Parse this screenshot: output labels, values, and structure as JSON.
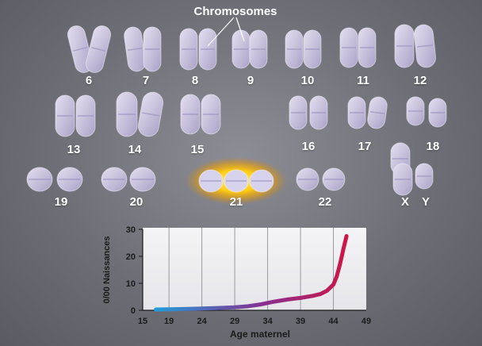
{
  "diagram": {
    "title": "Chromosomes",
    "chromosomes": [
      {
        "label": "6"
      },
      {
        "label": "7"
      },
      {
        "label": "8"
      },
      {
        "label": "9"
      },
      {
        "label": "10"
      },
      {
        "label": "11"
      },
      {
        "label": "12"
      },
      {
        "label": "13"
      },
      {
        "label": "14"
      },
      {
        "label": "15"
      },
      {
        "label": "16"
      },
      {
        "label": "17"
      },
      {
        "label": "18"
      },
      {
        "label": "19"
      },
      {
        "label": "20"
      },
      {
        "label": "21"
      },
      {
        "label": "22"
      },
      {
        "label": "X"
      },
      {
        "label": "Y"
      }
    ],
    "highlighted": "21",
    "colors": {
      "chromosome": "#c9c3dc",
      "highlight": "#ffd21f",
      "background": "#7a7b82"
    }
  },
  "chart_data": {
    "type": "line",
    "title": "",
    "xlabel": "Age maternel",
    "ylabel": "0/00 Naissances",
    "xlim": [
      15,
      49
    ],
    "ylim": [
      0,
      30
    ],
    "xticks": [
      "15",
      "19",
      "24",
      "29",
      "34",
      "39",
      "44",
      "49"
    ],
    "yticks": [
      "0",
      "10",
      "20",
      "30"
    ],
    "grid": "vertical",
    "series": [
      {
        "x": [
          17,
          20,
          23,
          26,
          29,
          31,
          33,
          35,
          37,
          39,
          41,
          42,
          43,
          44,
          44.5,
          45,
          45.5,
          46
        ],
        "values": [
          0.3,
          0.4,
          0.6,
          0.8,
          1.1,
          1.5,
          2.2,
          3.2,
          4.0,
          4.6,
          5.4,
          6.0,
          7.2,
          9.5,
          12.5,
          17,
          22.5,
          27.5
        ]
      }
    ],
    "gradient": [
      "#1aa3e0",
      "#8a2f8f",
      "#d8123a"
    ]
  }
}
